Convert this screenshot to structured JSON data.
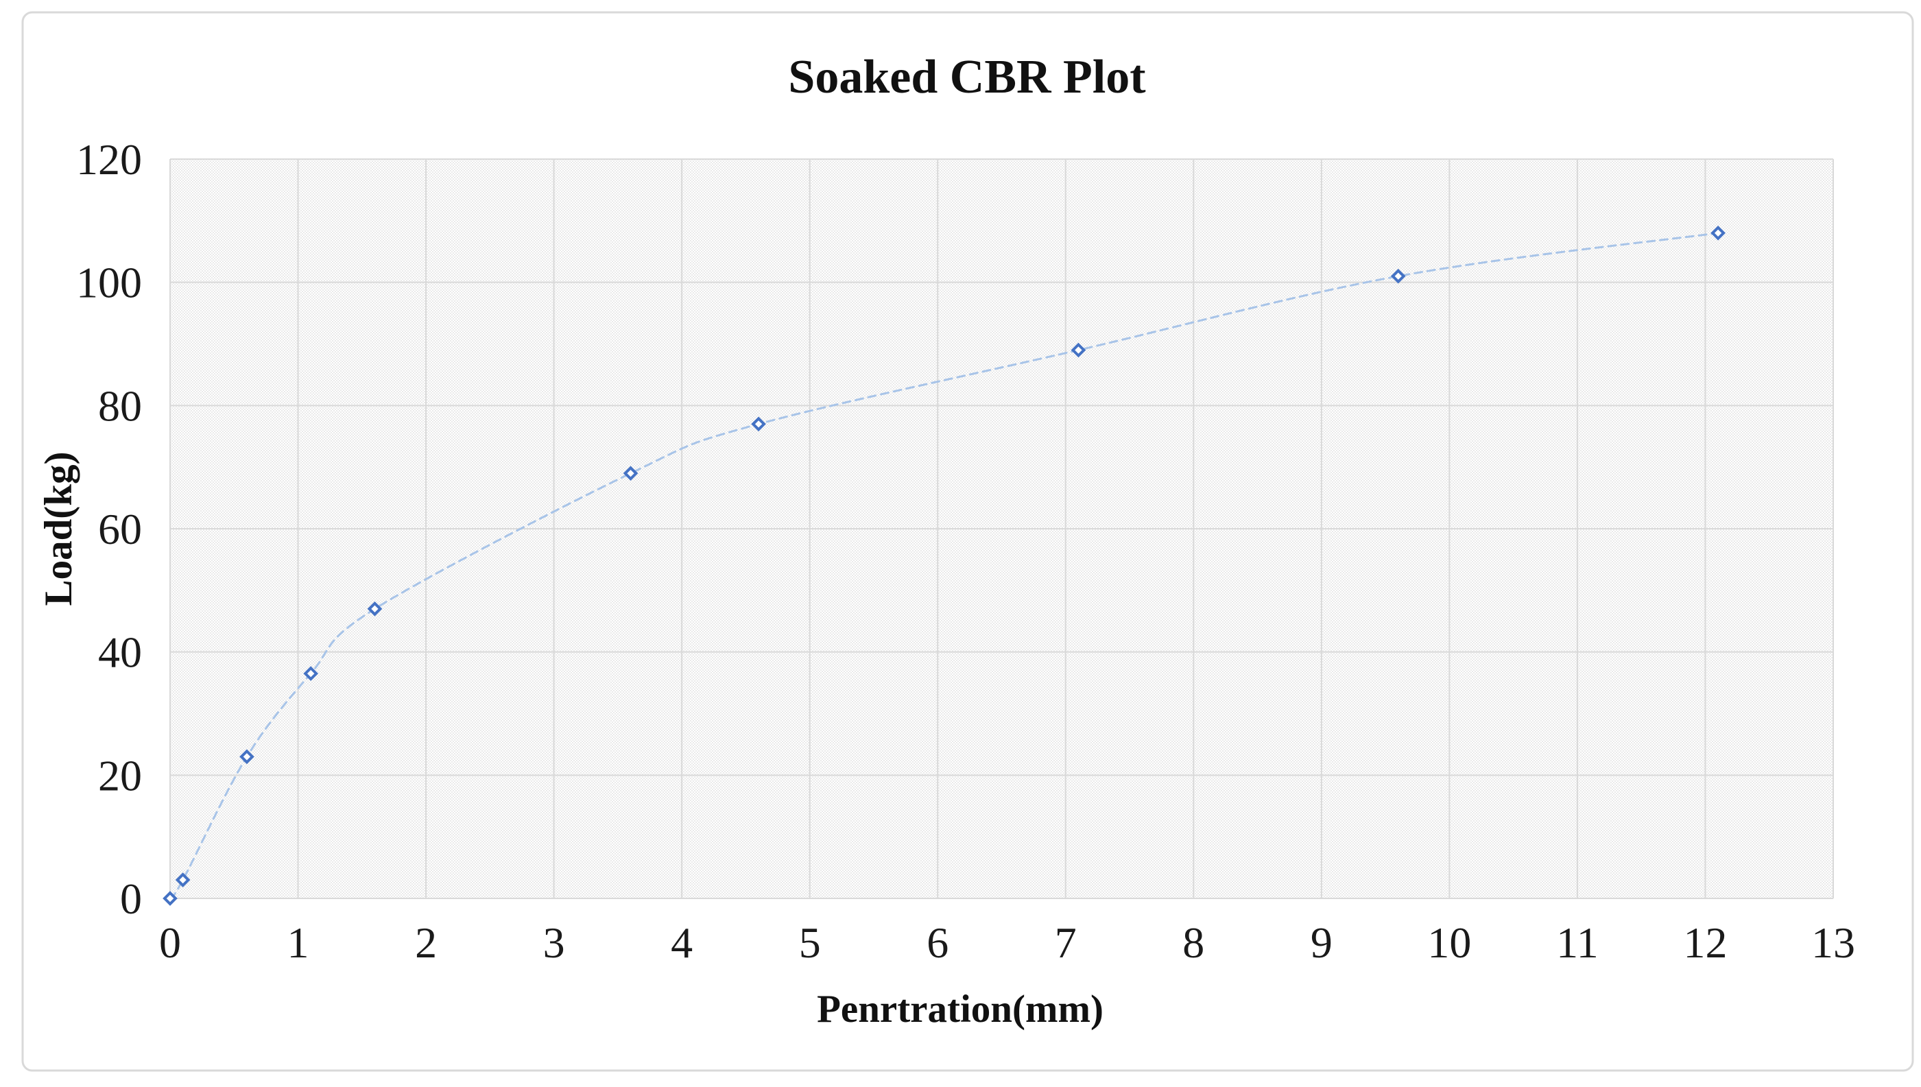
{
  "chart": {
    "title": "Soaked CBR Plot",
    "x_axis_title": "Penrtration(mm)",
    "y_axis_title": "Load(kg)"
  },
  "chart_data": {
    "type": "scatter",
    "title": "Soaked CBR Plot",
    "xlabel": "Penrtration(mm)",
    "ylabel": "Load(kg)",
    "series": [
      {
        "name": "Soaked CBR",
        "x": [
          0,
          0.1,
          0.6,
          1.1,
          1.6,
          3.6,
          4.6,
          7.1,
          9.6,
          12.1
        ],
        "y": [
          0,
          3,
          23,
          36.5,
          47,
          69,
          77,
          89,
          101,
          108
        ]
      }
    ],
    "x_ticks": [
      0,
      1,
      2,
      3,
      4,
      5,
      6,
      7,
      8,
      9,
      10,
      11,
      12,
      13
    ],
    "y_ticks": [
      0,
      20,
      40,
      60,
      80,
      100,
      120
    ],
    "xlim": [
      0,
      13
    ],
    "ylim": [
      0,
      120
    ],
    "grid": true,
    "legend_position": "none",
    "line_style": "smooth-dashed",
    "marker": "open-diamond",
    "colors": {
      "marker": "#4472c4",
      "line": "#a8c4e8",
      "gridline": "#d9d9d9",
      "plot_pattern_dot": "#eaeaea",
      "text": "#111111",
      "border": "#d9d9d9",
      "background": "#ffffff"
    }
  }
}
